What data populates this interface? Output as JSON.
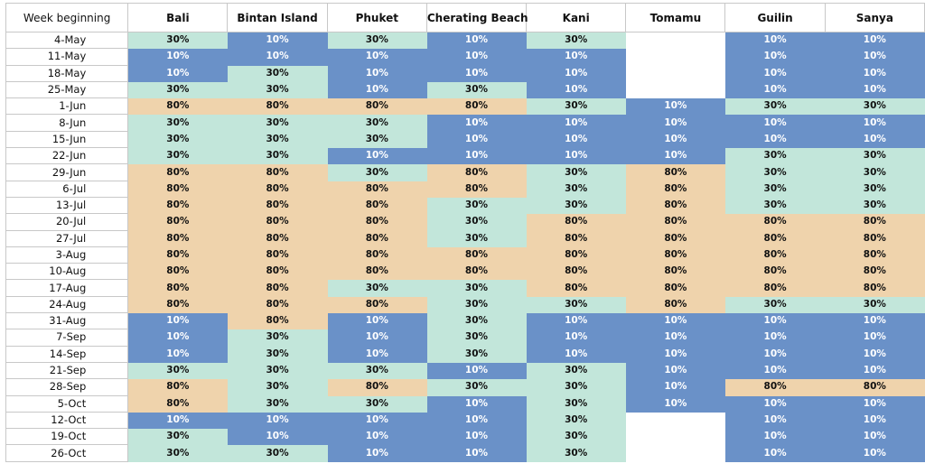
{
  "header_label": "Week beginning",
  "destinations": [
    "Bali",
    "Bintan Island",
    "Phuket",
    "Cherating Beach",
    "Kani",
    "Tomamu",
    "Guilin",
    "Sanya"
  ],
  "colors": {
    "10%": "#6a91c8",
    "30%": "#c2e6da",
    "80%": "#efd3ac"
  },
  "rows": [
    {
      "week": "4-May",
      "values": [
        "30%",
        "10%",
        "30%",
        "10%",
        "30%",
        "",
        "10%",
        "10%"
      ]
    },
    {
      "week": "11-May",
      "values": [
        "10%",
        "10%",
        "10%",
        "10%",
        "10%",
        "",
        "10%",
        "10%"
      ]
    },
    {
      "week": "18-May",
      "values": [
        "10%",
        "30%",
        "10%",
        "10%",
        "10%",
        "",
        "10%",
        "10%"
      ]
    },
    {
      "week": "25-May",
      "values": [
        "30%",
        "30%",
        "10%",
        "30%",
        "10%",
        "",
        "10%",
        "10%"
      ]
    },
    {
      "week": "1-Jun",
      "values": [
        "80%",
        "80%",
        "80%",
        "80%",
        "30%",
        "10%",
        "30%",
        "30%"
      ]
    },
    {
      "week": "8-Jun",
      "values": [
        "30%",
        "30%",
        "30%",
        "10%",
        "10%",
        "10%",
        "10%",
        "10%"
      ]
    },
    {
      "week": "15-Jun",
      "values": [
        "30%",
        "30%",
        "30%",
        "10%",
        "10%",
        "10%",
        "10%",
        "10%"
      ]
    },
    {
      "week": "22-Jun",
      "values": [
        "30%",
        "30%",
        "10%",
        "10%",
        "10%",
        "10%",
        "30%",
        "30%"
      ]
    },
    {
      "week": "29-Jun",
      "values": [
        "80%",
        "80%",
        "30%",
        "80%",
        "30%",
        "80%",
        "30%",
        "30%"
      ]
    },
    {
      "week": "6-Jul",
      "values": [
        "80%",
        "80%",
        "80%",
        "80%",
        "30%",
        "80%",
        "30%",
        "30%"
      ]
    },
    {
      "week": "13-Jul",
      "values": [
        "80%",
        "80%",
        "80%",
        "30%",
        "30%",
        "80%",
        "30%",
        "30%"
      ]
    },
    {
      "week": "20-Jul",
      "values": [
        "80%",
        "80%",
        "80%",
        "30%",
        "80%",
        "80%",
        "80%",
        "80%"
      ]
    },
    {
      "week": "27-Jul",
      "values": [
        "80%",
        "80%",
        "80%",
        "30%",
        "80%",
        "80%",
        "80%",
        "80%"
      ]
    },
    {
      "week": "3-Aug",
      "values": [
        "80%",
        "80%",
        "80%",
        "80%",
        "80%",
        "80%",
        "80%",
        "80%"
      ]
    },
    {
      "week": "10-Aug",
      "values": [
        "80%",
        "80%",
        "80%",
        "80%",
        "80%",
        "80%",
        "80%",
        "80%"
      ]
    },
    {
      "week": "17-Aug",
      "values": [
        "80%",
        "80%",
        "30%",
        "30%",
        "80%",
        "80%",
        "80%",
        "80%"
      ]
    },
    {
      "week": "24-Aug",
      "values": [
        "80%",
        "80%",
        "80%",
        "30%",
        "30%",
        "80%",
        "30%",
        "30%"
      ]
    },
    {
      "week": "31-Aug",
      "values": [
        "10%",
        "80%",
        "10%",
        "30%",
        "10%",
        "10%",
        "10%",
        "10%"
      ]
    },
    {
      "week": "7-Sep",
      "values": [
        "10%",
        "30%",
        "10%",
        "30%",
        "10%",
        "10%",
        "10%",
        "10%"
      ]
    },
    {
      "week": "14-Sep",
      "values": [
        "10%",
        "30%",
        "10%",
        "30%",
        "10%",
        "10%",
        "10%",
        "10%"
      ]
    },
    {
      "week": "21-Sep",
      "values": [
        "30%",
        "30%",
        "30%",
        "10%",
        "30%",
        "10%",
        "10%",
        "10%"
      ]
    },
    {
      "week": "28-Sep",
      "values": [
        "80%",
        "30%",
        "80%",
        "30%",
        "30%",
        "10%",
        "80%",
        "80%"
      ]
    },
    {
      "week": "5-Oct",
      "values": [
        "80%",
        "30%",
        "30%",
        "10%",
        "30%",
        "10%",
        "10%",
        "10%"
      ]
    },
    {
      "week": "12-Oct",
      "values": [
        "10%",
        "10%",
        "10%",
        "10%",
        "30%",
        "",
        "10%",
        "10%"
      ]
    },
    {
      "week": "19-Oct",
      "values": [
        "30%",
        "10%",
        "10%",
        "10%",
        "30%",
        "",
        "10%",
        "10%"
      ]
    },
    {
      "week": "26-Oct",
      "values": [
        "30%",
        "30%",
        "10%",
        "10%",
        "30%",
        "",
        "10%",
        "10%"
      ]
    }
  ]
}
